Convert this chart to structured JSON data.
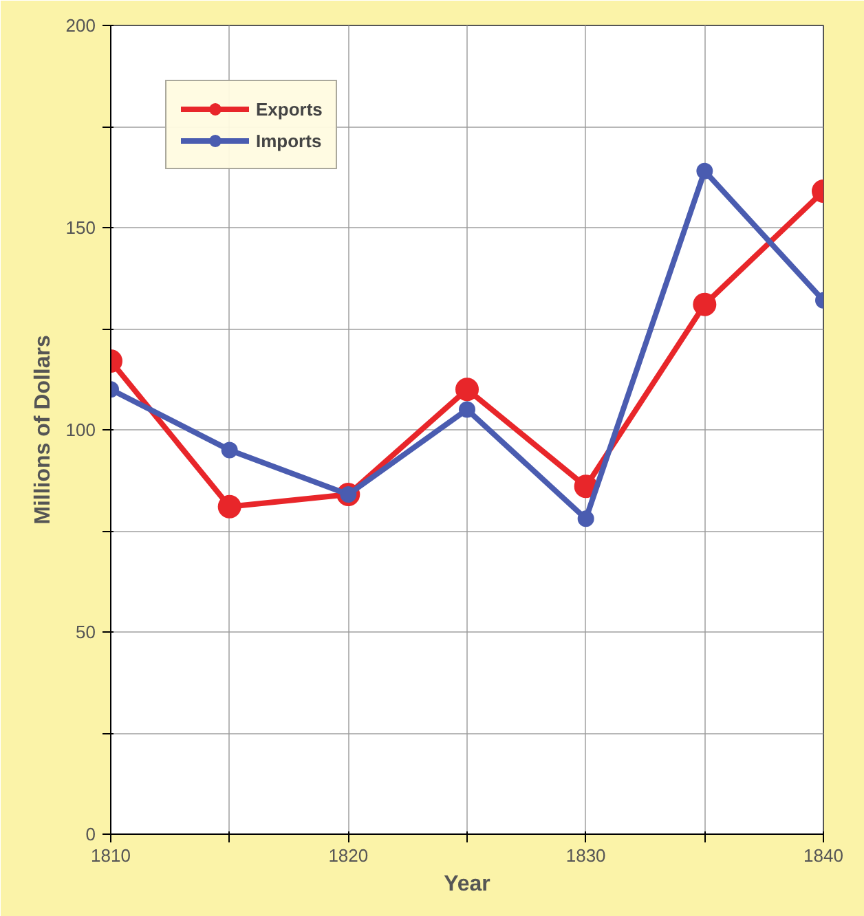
{
  "chart_data": {
    "type": "line",
    "xlabel": "Year",
    "ylabel": "Millions of Dollars",
    "x": [
      1810,
      1815,
      1820,
      1825,
      1830,
      1835,
      1840
    ],
    "series": [
      {
        "name": "Exports",
        "color": "#e8262a",
        "values": [
          117,
          81,
          84,
          110,
          86,
          131,
          159
        ]
      },
      {
        "name": "Imports",
        "color": "#4a5cb0",
        "values": [
          110,
          95,
          84,
          105,
          78,
          164,
          132
        ]
      }
    ],
    "xlim": [
      1810,
      1840
    ],
    "xticks": [
      1810,
      {
        "value": 1815,
        "label": null
      },
      1820,
      {
        "value": 1825,
        "label": null
      },
      1830,
      {
        "value": 1835,
        "label": null
      },
      1840
    ],
    "ylim": [
      0,
      200
    ],
    "yticks": [
      0,
      {
        "value": 25,
        "label": null
      },
      50,
      {
        "value": 75,
        "label": null
      },
      100,
      {
        "value": 125,
        "label": null
      },
      150,
      {
        "value": 175,
        "label": null
      },
      200
    ],
    "grid": true,
    "legend": "top left",
    "marker": "circle",
    "line_style": "solid"
  }
}
